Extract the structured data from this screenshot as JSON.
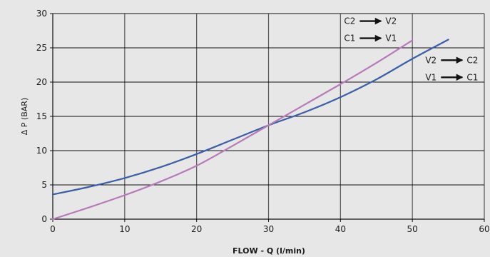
{
  "chart_data": {
    "type": "line",
    "title": "",
    "xlabel": "FLOW - Q (l/min)",
    "ylabel": "Δ P (BAR)",
    "xlim": [
      0,
      60
    ],
    "ylim": [
      0,
      30
    ],
    "x_ticks": [
      0,
      10,
      20,
      30,
      40,
      50,
      60
    ],
    "y_ticks": [
      0,
      5,
      10,
      15,
      20,
      25,
      30
    ],
    "grid": {
      "vertical": true,
      "horizontal": true
    },
    "series": [
      {
        "color": "#3a5ea8",
        "points": [
          [
            0,
            3.6
          ],
          [
            5,
            4.7
          ],
          [
            10,
            6.0
          ],
          [
            15,
            7.6
          ],
          [
            20,
            9.5
          ],
          [
            25,
            11.6
          ],
          [
            30,
            13.7
          ],
          [
            35,
            15.6
          ],
          [
            40,
            17.8
          ],
          [
            45,
            20.4
          ],
          [
            50,
            23.4
          ],
          [
            55,
            26.2
          ]
        ]
      },
      {
        "color": "#b77ab8",
        "points": [
          [
            0,
            0.0
          ],
          [
            5,
            1.7
          ],
          [
            10,
            3.5
          ],
          [
            15,
            5.5
          ],
          [
            20,
            7.8
          ],
          [
            25,
            10.7
          ],
          [
            30,
            13.7
          ],
          [
            35,
            16.7
          ],
          [
            40,
            19.7
          ],
          [
            45,
            22.8
          ],
          [
            50,
            26.1
          ]
        ]
      }
    ],
    "annotations": [
      {
        "from": "C2",
        "to": "V2",
        "x": 40.5,
        "y": 28.9
      },
      {
        "from": "C1",
        "to": "V1",
        "x": 40.5,
        "y": 26.4
      },
      {
        "from": "V2",
        "to": "C2",
        "x": 51.8,
        "y": 23.2
      },
      {
        "from": "V1",
        "to": "C1",
        "x": 51.8,
        "y": 20.7
      }
    ]
  }
}
